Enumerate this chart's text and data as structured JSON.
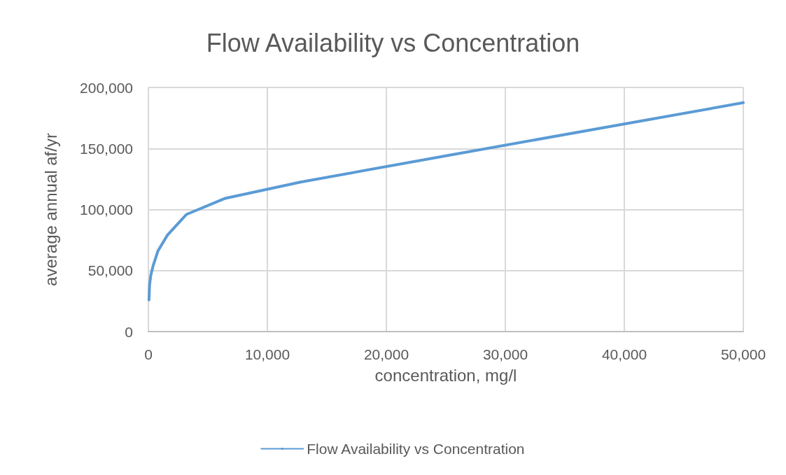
{
  "chart_data": {
    "type": "line",
    "title": "Flow Availability vs Concentration",
    "xlabel": "concentration, mg/l",
    "ylabel": "average annual af/yr",
    "series": [
      {
        "name": "Flow Availability vs Concentration",
        "color": "#5b9bd5",
        "x": [
          50,
          100,
          200,
          400,
          800,
          1600,
          3200,
          6400,
          12800,
          25000,
          50000
        ],
        "values": [
          26000,
          38000,
          46000,
          54000,
          66000,
          79000,
          96000,
          109000,
          122500,
          144000,
          187500
        ]
      }
    ],
    "xlim": [
      0,
      50000
    ],
    "xticks": [
      0,
      {
        "value": 10000,
        "label": "10,000"
      },
      {
        "value": 20000,
        "label": "20,000"
      },
      {
        "value": 30000,
        "label": "30,000"
      },
      {
        "value": 40000,
        "label": "40,000"
      },
      {
        "value": 50000,
        "label": "50,000"
      }
    ],
    "ylim": [
      0,
      200000
    ],
    "yticks": [
      0,
      {
        "value": 50000,
        "label": "50,000"
      },
      {
        "value": 100000,
        "label": "100,000"
      },
      {
        "value": 150000,
        "label": "150,000"
      },
      {
        "value": 200000,
        "label": "200,000"
      }
    ],
    "grid": true,
    "legend": "bottom",
    "marker": "none",
    "line_style": "solid"
  }
}
